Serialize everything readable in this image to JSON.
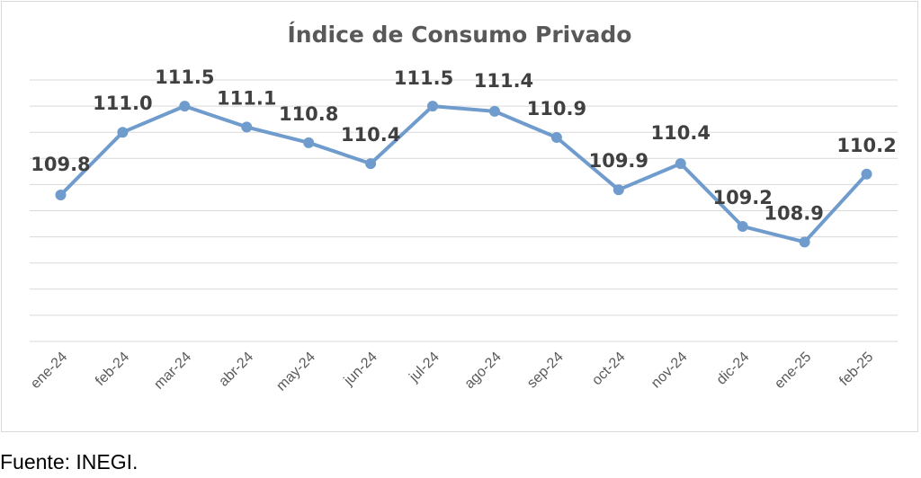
{
  "chart_data": {
    "type": "line",
    "title": "Índice de Consumo Privado",
    "categories": [
      "ene-24",
      "feb-24",
      "mar-24",
      "abr-24",
      "may-24",
      "jun-24",
      "jul-24",
      "ago-24",
      "sep-24",
      "oct-24",
      "nov-24",
      "dic-24",
      "ene-25",
      "feb-25"
    ],
    "series": [
      {
        "values": [
          109.8,
          111.0,
          111.5,
          111.1,
          110.8,
          110.4,
          111.5,
          111.4,
          110.9,
          109.9,
          110.4,
          109.2,
          108.9,
          110.2
        ]
      }
    ],
    "data_labels": [
      "109.8",
      "111.0",
      "111.5",
      "111.1",
      "110.8",
      "110.4",
      "111.5",
      "111.4",
      "110.9",
      "109.9",
      "110.4",
      "109.2",
      "108.9",
      "110.2"
    ],
    "ylim": [
      107.0,
      112.0
    ],
    "grid": true,
    "colors": {
      "line": "#6f9ccd",
      "grid": "#d9d9d9",
      "label": "#404040",
      "tick": "#595959"
    }
  },
  "footer": {
    "source": "Fuente: INEGI."
  }
}
